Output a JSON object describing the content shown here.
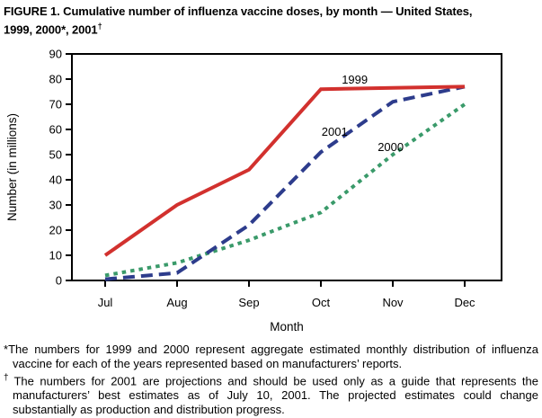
{
  "title": {
    "line1": "FIGURE 1. Cumulative number of influenza vaccine doses, by month — United States,",
    "line2_prefix": "1999, 2000*, 2001",
    "line2_dagger": "†"
  },
  "chart_data": {
    "type": "line",
    "title": "",
    "xlabel": "Month",
    "ylabel": "Number (in millions)",
    "categories": [
      "Jul",
      "Aug",
      "Sep",
      "Oct",
      "Nov",
      "Dec"
    ],
    "yticks": [
      0,
      10,
      20,
      30,
      40,
      50,
      60,
      70,
      80,
      90
    ],
    "ylim": [
      0,
      90
    ],
    "grid": false,
    "legend_position": "inline-annotations",
    "axis_color": "#000000",
    "series": [
      {
        "name": "2000",
        "style": "dotted",
        "color": "#3a9a6a",
        "values": [
          2,
          7,
          16,
          27,
          50,
          70
        ]
      },
      {
        "name": "2001",
        "style": "dashed",
        "color": "#2d3c8c",
        "values": [
          0.5,
          3,
          22,
          51,
          71,
          77
        ]
      },
      {
        "name": "1999",
        "style": "solid",
        "color": "#d2312e",
        "values": [
          10,
          30,
          44,
          76,
          76.5,
          77
        ]
      }
    ],
    "annotations": [
      {
        "text": "1999",
        "month": 3.29,
        "value": 78.2
      },
      {
        "text": "2001",
        "month": 3.01,
        "value": 57.5
      },
      {
        "text": "2000",
        "month": 3.79,
        "value": 51.5
      }
    ]
  },
  "footnotes": [
    {
      "marker": "*",
      "text": "The numbers for 1999 and 2000 represent aggregate estimated monthly distribution of influenza vaccine for each of the years represented based on manufacturers’ reports."
    },
    {
      "marker": "†",
      "text": "The numbers for 2001 are projections and should be used only as a guide that represents the manufacturers’ best estimates as of July 10, 2001. The projected estimates could change substantially as production and distribution progress."
    }
  ]
}
